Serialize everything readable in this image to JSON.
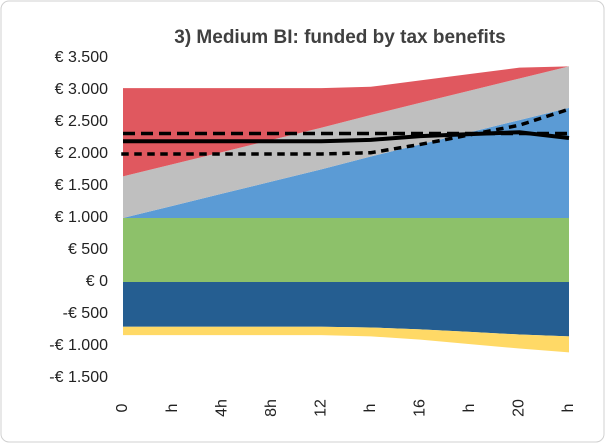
{
  "chart_data": {
    "type": "area",
    "title": "3) Medium BI: funded by tax benefits",
    "categories": [
      "0",
      "h",
      "4h",
      "8h",
      "12",
      "h",
      "16",
      "h",
      "20",
      "h"
    ],
    "ylim": [
      -1500,
      3500
    ],
    "yticks": [
      {
        "value": -1500,
        "label": "-€ 1.500"
      },
      {
        "value": -1000,
        "label": "-€ 1.000"
      },
      {
        "value": -500,
        "label": "-€ 500"
      },
      {
        "value": 0,
        "label": "€ 0"
      },
      {
        "value": 500,
        "label": "€ 500"
      },
      {
        "value": 1000,
        "label": "€ 1.000"
      },
      {
        "value": 1500,
        "label": "€ 1.500"
      },
      {
        "value": 2000,
        "label": "€ 2.000"
      },
      {
        "value": 2500,
        "label": "€ 2.500"
      },
      {
        "value": 3000,
        "label": "€ 3.000"
      },
      {
        "value": 3500,
        "label": "€ 3.500"
      }
    ],
    "grid": false,
    "series": [
      {
        "kind": "area",
        "color": "#8dc16a",
        "values": [
          1000,
          1000,
          1000,
          1000,
          1000,
          1000,
          1000,
          1000,
          1000,
          1000
        ]
      },
      {
        "kind": "area",
        "color": "#5b9bd5",
        "values": [
          0,
          190,
          380,
          570,
          760,
          960,
          1150,
          1340,
          1530,
          1720
        ]
      },
      {
        "kind": "area",
        "color": "#bfbfbf",
        "values": [
          650,
          650,
          650,
          650,
          650,
          650,
          650,
          650,
          650,
          650
        ]
      },
      {
        "kind": "area",
        "color": "#e0585f",
        "values": [
          1380,
          1190,
          1000,
          810,
          620,
          440,
          350,
          260,
          170,
          0
        ]
      },
      {
        "kind": "area",
        "color": "#255e91",
        "values": [
          -700,
          -700,
          -700,
          -700,
          -700,
          -710,
          -740,
          -780,
          -820,
          -850
        ]
      },
      {
        "kind": "area",
        "color": "#ffd966",
        "values": [
          -130,
          -130,
          -130,
          -130,
          -130,
          -140,
          -160,
          -190,
          -220,
          -250
        ]
      },
      {
        "kind": "line",
        "color": "#000000",
        "dash": "solid",
        "values": [
          2200,
          2200,
          2200,
          2200,
          2200,
          2220,
          2280,
          2310,
          2340,
          2250
        ]
      },
      {
        "kind": "line",
        "color": "#000000",
        "dash": "dashed",
        "values": [
          2320,
          2320,
          2320,
          2320,
          2320,
          2320,
          2320,
          2320,
          2320,
          2320
        ]
      },
      {
        "kind": "line",
        "color": "#000000",
        "dash": "dotted",
        "values": [
          2000,
          2000,
          2000,
          2000,
          2000,
          2020,
          2150,
          2300,
          2450,
          2700
        ]
      }
    ]
  }
}
